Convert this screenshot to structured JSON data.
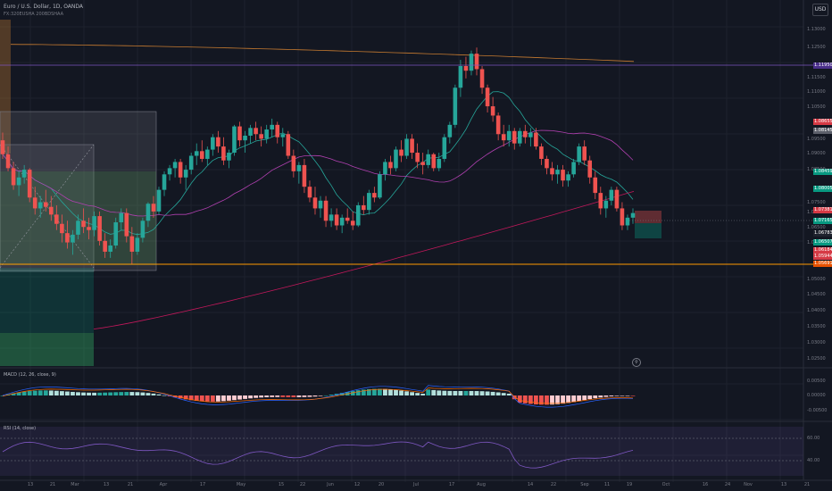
{
  "header": {
    "symbol": "Euro / U.S. Dollar, 1D, OANDA",
    "indicator": "FX:320EUSHA 200BDSHAA",
    "currency_button": "USD",
    "macd_label": "MACD (12, 26, close, 9)",
    "rsi_label": "RSI (14, close)"
  },
  "price_axis": {
    "labels": [
      "1.13000",
      "1.12500",
      "1.11500",
      "1.11000",
      "1.10500",
      "1.09500",
      "1.09000",
      "1.08500",
      "1.07500",
      "1.07000",
      "1.06500",
      "1.06000",
      "1.05000",
      "1.04500",
      "1.04000",
      "1.03500",
      "1.03000",
      "1.02500"
    ],
    "tags": [
      {
        "text": "1.11950",
        "color": "#4a2f8a"
      },
      {
        "text": "1.08655",
        "color": "#d63a45"
      },
      {
        "text": "1.08145",
        "color": "#5d606b"
      },
      {
        "text": "1.08459",
        "color": "#089981"
      },
      {
        "text": "1.08005",
        "color": "#089981"
      },
      {
        "text": "1.07381",
        "color": "#d63a45"
      },
      {
        "text": "1.07165",
        "color": "#089981"
      },
      {
        "text": "1.06783",
        "color": "#1e222d"
      },
      {
        "text": "1.06507",
        "color": "#089981"
      },
      {
        "text": "1.06184",
        "color": "#d63a45"
      },
      {
        "text": "1.05944",
        "color": "#d63a45"
      },
      {
        "text": "1.05691",
        "color": "#e65100"
      }
    ],
    "macd_labels": [
      "0.00500",
      "0.00000",
      "-0.00500"
    ],
    "rsi_labels": [
      "60.00",
      "40.00"
    ]
  },
  "time_axis": {
    "labels": [
      "13",
      "21",
      "Mar",
      "13",
      "21",
      "Apr",
      "17",
      "May",
      "15",
      "22",
      "Jun",
      "12",
      "20",
      "Jul",
      "17",
      "Aug",
      "14",
      "22",
      "Sep",
      "11",
      "19",
      "Oct",
      "16",
      "24",
      "Nov",
      "13",
      "21"
    ]
  },
  "colors": {
    "up": "#26a69a",
    "down": "#ef5350",
    "bg": "#131722",
    "ema_fast": "#26a69a",
    "ema_mid": "#b040b0",
    "ema_slow": "#c2185b",
    "ma_orange": "#c77b30",
    "hline_purple": "#7e57c2",
    "hline_orange": "#ff9800"
  },
  "chart_data": {
    "type": "candlestick",
    "symbol": "EURUSD",
    "timeframe": "1D",
    "ylim": [
      1.0225,
      1.133
    ],
    "candles": [
      [
        1.094,
        1.0965,
        1.088,
        1.0895
      ],
      [
        1.0895,
        1.092,
        1.084,
        1.085
      ],
      [
        1.085,
        1.087,
        1.078,
        1.0795
      ],
      [
        1.0795,
        1.084,
        1.076,
        1.082
      ],
      [
        1.082,
        1.086,
        1.08,
        1.0845
      ],
      [
        1.0845,
        1.085,
        1.074,
        1.0755
      ],
      [
        1.0755,
        1.079,
        1.07,
        1.072
      ],
      [
        1.072,
        1.076,
        1.069,
        1.074
      ],
      [
        1.074,
        1.078,
        1.071,
        1.0725
      ],
      [
        1.0725,
        1.076,
        1.068,
        1.07
      ],
      [
        1.07,
        1.073,
        1.065,
        1.067
      ],
      [
        1.067,
        1.07,
        1.061,
        1.064
      ],
      [
        1.064,
        1.068,
        1.059,
        1.061
      ],
      [
        1.061,
        1.065,
        1.057,
        1.0635
      ],
      [
        1.0635,
        1.07,
        1.062,
        1.068
      ],
      [
        1.068,
        1.072,
        1.064,
        1.066
      ],
      [
        1.066,
        1.069,
        1.062,
        1.065
      ],
      [
        1.065,
        1.071,
        1.063,
        1.0695
      ],
      [
        1.0695,
        1.071,
        1.06,
        1.0615
      ],
      [
        1.0615,
        1.064,
        1.056,
        1.058
      ],
      [
        1.058,
        1.062,
        1.056,
        1.06
      ],
      [
        1.06,
        1.069,
        1.059,
        1.0675
      ],
      [
        1.0675,
        1.072,
        1.065,
        1.0705
      ],
      [
        1.0705,
        1.072,
        1.061,
        1.063
      ],
      [
        1.063,
        1.066,
        1.054,
        1.058
      ],
      [
        1.058,
        1.064,
        1.057,
        1.0625
      ],
      [
        1.0625,
        1.069,
        1.061,
        1.068
      ],
      [
        1.068,
        1.074,
        1.066,
        1.0735
      ],
      [
        1.0735,
        1.076,
        1.069,
        1.071
      ],
      [
        1.071,
        1.079,
        1.07,
        1.078
      ],
      [
        1.078,
        1.084,
        1.076,
        1.083
      ],
      [
        1.083,
        1.086,
        1.081,
        1.085
      ],
      [
        1.085,
        1.088,
        1.082,
        1.087
      ],
      [
        1.087,
        1.088,
        1.08,
        1.082
      ],
      [
        1.082,
        1.086,
        1.078,
        1.0845
      ],
      [
        1.0845,
        1.09,
        1.083,
        1.089
      ],
      [
        1.089,
        1.093,
        1.086,
        1.0905
      ],
      [
        1.0905,
        1.094,
        1.087,
        1.088
      ],
      [
        1.088,
        1.092,
        1.086,
        1.091
      ],
      [
        1.091,
        1.096,
        1.089,
        1.095
      ],
      [
        1.095,
        1.097,
        1.09,
        1.092
      ],
      [
        1.092,
        1.095,
        1.086,
        1.0875
      ],
      [
        1.0875,
        1.091,
        1.085,
        1.09
      ],
      [
        1.09,
        1.099,
        1.089,
        1.0985
      ],
      [
        1.0985,
        1.1,
        1.092,
        1.094
      ],
      [
        1.094,
        1.097,
        1.09,
        1.0955
      ],
      [
        1.0955,
        1.099,
        1.093,
        1.098
      ],
      [
        1.098,
        1.1,
        1.094,
        1.096
      ],
      [
        1.096,
        1.0985,
        1.092,
        1.0945
      ],
      [
        1.0945,
        1.099,
        1.093,
        1.0975
      ],
      [
        1.0975,
        1.101,
        1.095,
        1.099
      ],
      [
        1.099,
        1.1,
        1.093,
        1.095
      ],
      [
        1.095,
        1.098,
        1.092,
        1.096
      ],
      [
        1.096,
        1.097,
        1.088,
        1.089
      ],
      [
        1.089,
        1.091,
        1.082,
        1.084
      ],
      [
        1.084,
        1.087,
        1.08,
        1.086
      ],
      [
        1.086,
        1.088,
        1.077,
        1.079
      ],
      [
        1.079,
        1.081,
        1.074,
        1.0755
      ],
      [
        1.0755,
        1.079,
        1.07,
        1.072
      ],
      [
        1.072,
        1.076,
        1.069,
        1.0745
      ],
      [
        1.0745,
        1.076,
        1.066,
        1.068
      ],
      [
        1.068,
        1.072,
        1.066,
        1.07
      ],
      [
        1.07,
        1.072,
        1.065,
        1.0665
      ],
      [
        1.0665,
        1.07,
        1.064,
        1.069
      ],
      [
        1.069,
        1.072,
        1.067,
        1.068
      ],
      [
        1.068,
        1.071,
        1.065,
        1.0665
      ],
      [
        1.0665,
        1.074,
        1.066,
        1.073
      ],
      [
        1.073,
        1.076,
        1.07,
        1.0715
      ],
      [
        1.0715,
        1.078,
        1.07,
        1.077
      ],
      [
        1.077,
        1.079,
        1.074,
        1.0755
      ],
      [
        1.0755,
        1.084,
        1.075,
        1.083
      ],
      [
        1.083,
        1.088,
        1.081,
        1.087
      ],
      [
        1.087,
        1.089,
        1.083,
        1.085
      ],
      [
        1.085,
        1.092,
        1.084,
        1.091
      ],
      [
        1.091,
        1.094,
        1.087,
        1.089
      ],
      [
        1.089,
        1.096,
        1.088,
        1.0945
      ],
      [
        1.0945,
        1.096,
        1.088,
        1.09
      ],
      [
        1.09,
        1.093,
        1.085,
        1.087
      ],
      [
        1.087,
        1.09,
        1.083,
        1.086
      ],
      [
        1.086,
        1.091,
        1.085,
        1.0895
      ],
      [
        1.0895,
        1.09,
        1.084,
        1.085
      ],
      [
        1.085,
        1.09,
        1.084,
        1.088
      ],
      [
        1.088,
        1.096,
        1.087,
        1.095
      ],
      [
        1.095,
        1.1,
        1.093,
        1.099
      ],
      [
        1.099,
        1.112,
        1.098,
        1.111
      ],
      [
        1.111,
        1.12,
        1.108,
        1.118
      ],
      [
        1.118,
        1.121,
        1.114,
        1.1165
      ],
      [
        1.1165,
        1.123,
        1.115,
        1.122
      ],
      [
        1.122,
        1.124,
        1.115,
        1.117
      ],
      [
        1.117,
        1.118,
        1.109,
        1.111
      ],
      [
        1.111,
        1.112,
        1.103,
        1.105
      ],
      [
        1.105,
        1.108,
        1.1,
        1.102
      ],
      [
        1.102,
        1.103,
        1.094,
        1.096
      ],
      [
        1.096,
        1.099,
        1.092,
        1.094
      ],
      [
        1.094,
        1.099,
        1.092,
        1.097
      ],
      [
        1.097,
        1.098,
        1.091,
        1.093
      ],
      [
        1.093,
        1.098,
        1.092,
        1.097
      ],
      [
        1.097,
        1.099,
        1.093,
        1.095
      ],
      [
        1.095,
        1.098,
        1.092,
        1.0965
      ],
      [
        1.0965,
        1.098,
        1.091,
        1.092
      ],
      [
        1.092,
        1.093,
        1.086,
        1.088
      ],
      [
        1.088,
        1.089,
        1.083,
        1.085
      ],
      [
        1.085,
        1.087,
        1.081,
        1.083
      ],
      [
        1.083,
        1.086,
        1.08,
        1.0845
      ],
      [
        1.0845,
        1.086,
        1.079,
        1.081
      ],
      [
        1.081,
        1.084,
        1.079,
        1.083
      ],
      [
        1.083,
        1.088,
        1.082,
        1.087
      ],
      [
        1.087,
        1.093,
        1.086,
        1.092
      ],
      [
        1.092,
        1.094,
        1.086,
        1.0875
      ],
      [
        1.0875,
        1.089,
        1.08,
        1.082
      ],
      [
        1.082,
        1.084,
        1.075,
        1.077
      ],
      [
        1.077,
        1.079,
        1.07,
        1.072
      ],
      [
        1.072,
        1.076,
        1.069,
        1.0745
      ],
      [
        1.0745,
        1.079,
        1.073,
        1.078
      ],
      [
        1.078,
        1.079,
        1.071,
        1.072
      ],
      [
        1.072,
        1.074,
        1.065,
        1.0665
      ],
      [
        1.0665,
        1.07,
        1.065,
        1.069
      ],
      [
        1.069,
        1.072,
        1.067,
        1.0705
      ]
    ]
  }
}
